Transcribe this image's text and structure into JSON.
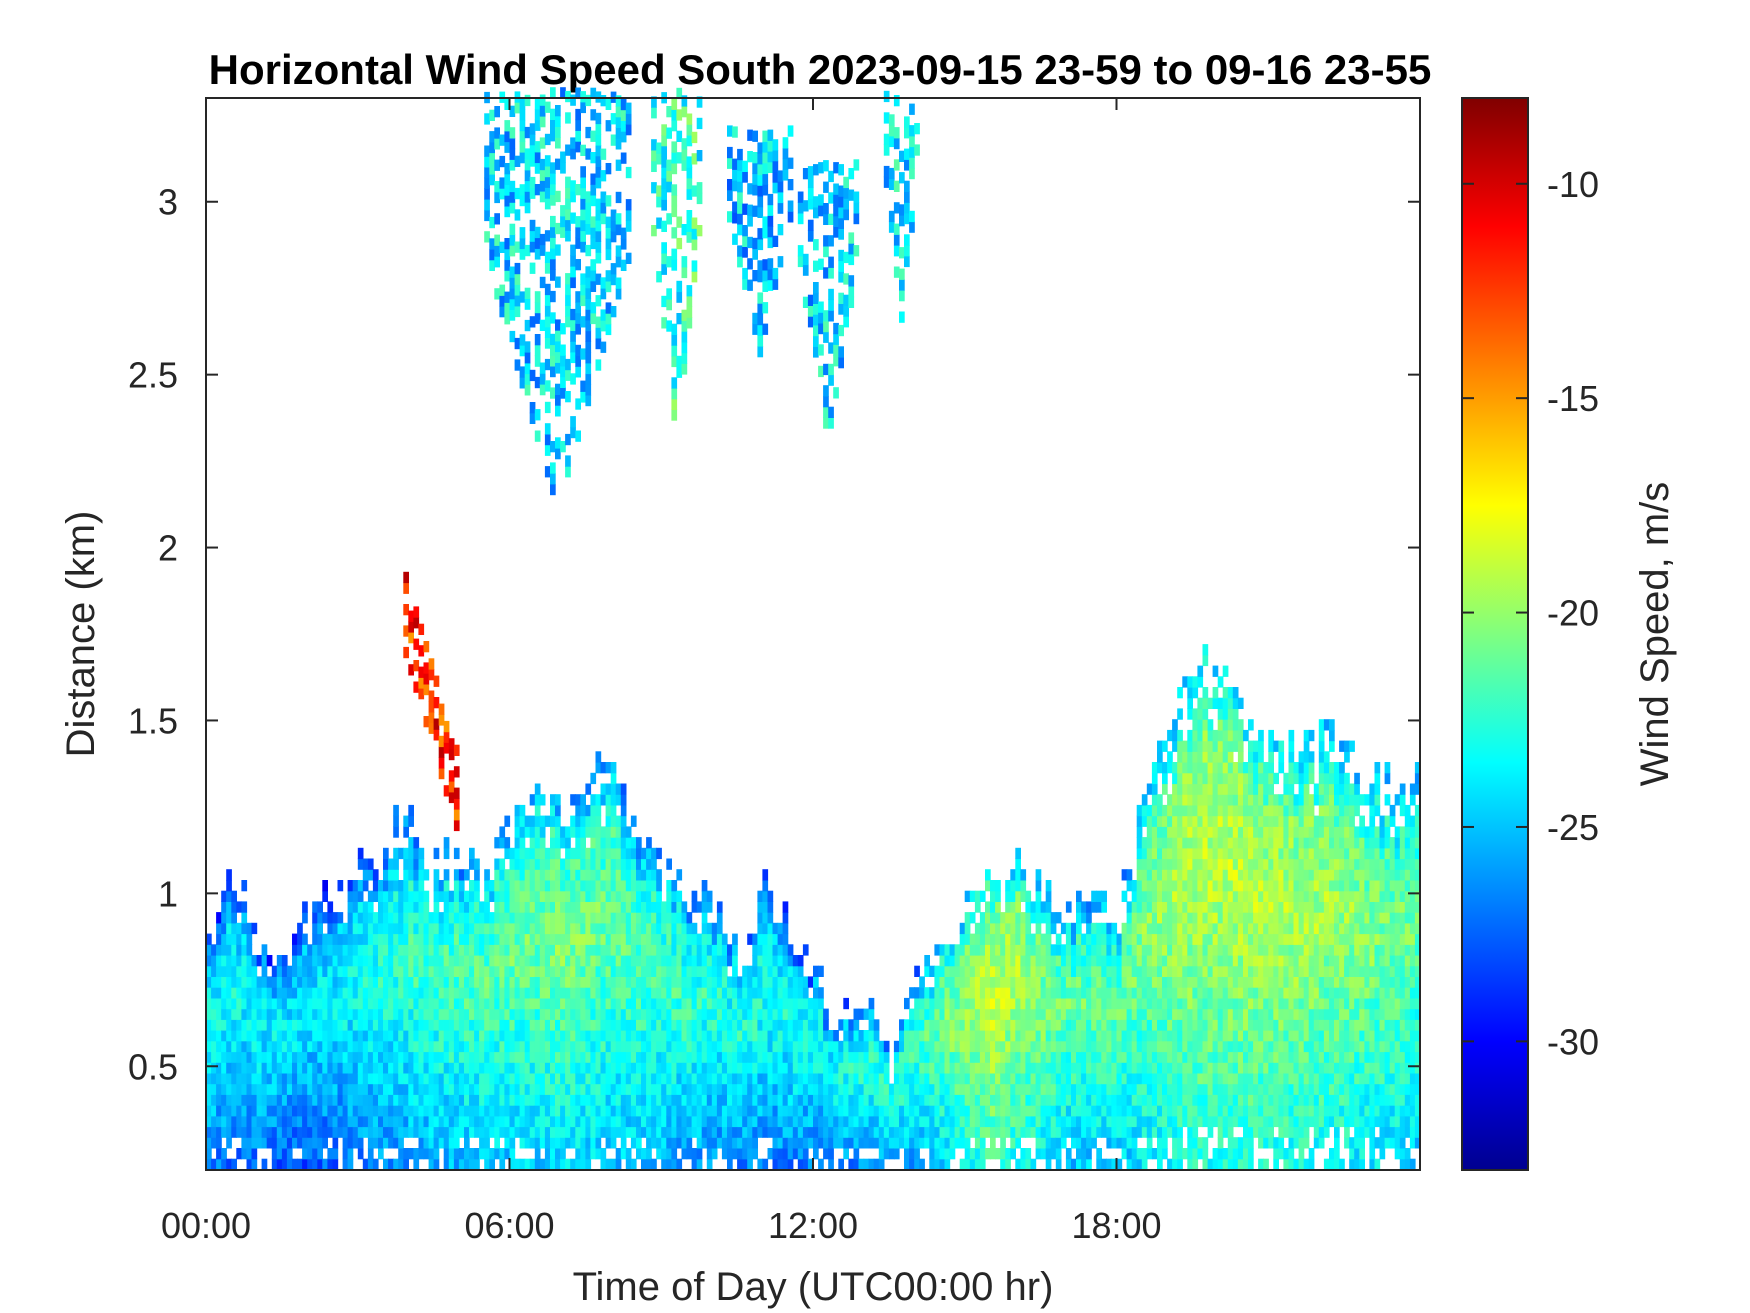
{
  "chart_data": {
    "type": "heatmap",
    "title": "Horizontal Wind Speed South 2023-09-15 23-59 to 09-16 23-55",
    "xlabel": "Time of Day (UTC00:00 hr)",
    "ylabel": "Distance (km)",
    "colorbar_label": "Wind Speed, m/s",
    "x_unit": "hour",
    "xlim": [
      0,
      24
    ],
    "ylim": [
      0.2,
      3.3
    ],
    "clim": [
      -33,
      -8
    ],
    "x_ticks": [
      0,
      6,
      12,
      18
    ],
    "x_tick_labels": [
      "00:00",
      "06:00",
      "12:00",
      "18:00"
    ],
    "y_ticks": [
      0.5,
      1,
      1.5,
      2,
      2.5,
      3
    ],
    "y_tick_labels": [
      "0.5",
      "1",
      "1.5",
      "2",
      "2.5",
      "3"
    ],
    "colorbar_ticks": [
      -10,
      -15,
      -20,
      -25,
      -30
    ],
    "colorbar_tick_labels": [
      "-10",
      "-15",
      "-20",
      "-25",
      "-30"
    ],
    "colormap": "jet",
    "colormap_stops": [
      "#00008f",
      "#0000ff",
      "#00ffff",
      "#ffff00",
      "#ff0000",
      "#800000"
    ],
    "grid": false,
    "boundary_layer_top_km": [
      [
        0.0,
        0.85
      ],
      [
        0.5,
        1.05
      ],
      [
        1.0,
        0.85
      ],
      [
        1.5,
        0.8
      ],
      [
        2.0,
        0.95
      ],
      [
        2.5,
        1.0
      ],
      [
        3.0,
        1.1
      ],
      [
        3.5,
        1.15
      ],
      [
        4.0,
        1.2
      ],
      [
        4.5,
        1.1
      ],
      [
        5.0,
        1.1
      ],
      [
        5.5,
        1.1
      ],
      [
        6.0,
        1.2
      ],
      [
        6.5,
        1.35
      ],
      [
        7.0,
        1.25
      ],
      [
        7.5,
        1.3
      ],
      [
        8.0,
        1.4
      ],
      [
        8.5,
        1.2
      ],
      [
        9.0,
        1.1
      ],
      [
        9.5,
        1.0
      ],
      [
        10.0,
        0.95
      ],
      [
        10.5,
        0.85
      ],
      [
        11.0,
        1.0
      ],
      [
        11.5,
        0.9
      ],
      [
        12.0,
        0.75
      ],
      [
        12.5,
        0.6
      ],
      [
        13.0,
        0.7
      ],
      [
        13.5,
        0.5
      ],
      [
        14.0,
        0.8
      ],
      [
        14.5,
        0.85
      ],
      [
        15.0,
        0.95
      ],
      [
        15.5,
        1.05
      ],
      [
        16.0,
        1.1
      ],
      [
        16.5,
        1.0
      ],
      [
        17.0,
        0.95
      ],
      [
        17.5,
        0.95
      ],
      [
        18.0,
        0.9
      ],
      [
        18.5,
        1.3
      ],
      [
        19.0,
        1.5
      ],
      [
        19.5,
        1.65
      ],
      [
        20.0,
        1.7
      ],
      [
        20.5,
        1.55
      ],
      [
        21.0,
        1.45
      ],
      [
        21.5,
        1.4
      ],
      [
        22.0,
        1.45
      ],
      [
        22.5,
        1.4
      ],
      [
        23.0,
        1.35
      ],
      [
        23.5,
        1.3
      ],
      [
        24.0,
        1.3
      ]
    ],
    "core_speed_m_s": [
      [
        0,
        -23
      ],
      [
        2,
        -24
      ],
      [
        4,
        -22
      ],
      [
        6,
        -21
      ],
      [
        7,
        -20.5
      ],
      [
        8,
        -21
      ],
      [
        10,
        -22.5
      ],
      [
        12,
        -23
      ],
      [
        14,
        -22
      ],
      [
        15.5,
        -18.5
      ],
      [
        17,
        -21
      ],
      [
        18,
        -21
      ],
      [
        19.5,
        -19
      ],
      [
        20.5,
        -19
      ],
      [
        22,
        -19.5
      ],
      [
        24,
        -21
      ]
    ],
    "upper_plumes": [
      {
        "x_start": 5.5,
        "x_end": 8.3,
        "y_bottom": 2.1,
        "y_top": 3.3,
        "speed": -24.5
      },
      {
        "x_start": 8.8,
        "x_end": 9.7,
        "y_bottom": 2.3,
        "y_top": 3.3,
        "speed": -22.5
      },
      {
        "x_start": 10.3,
        "x_end": 11.5,
        "y_bottom": 2.55,
        "y_top": 3.2,
        "speed": -25
      },
      {
        "x_start": 11.7,
        "x_end": 12.8,
        "y_bottom": 2.3,
        "y_top": 3.1,
        "speed": -24.5
      },
      {
        "x_start": 13.4,
        "x_end": 14.0,
        "y_bottom": 2.65,
        "y_top": 3.3,
        "speed": -24
      }
    ],
    "strong_feature": {
      "x_start": 3.9,
      "x_end": 4.9,
      "y_bottom": 1.35,
      "y_top": 1.85,
      "speed": -12
    }
  }
}
